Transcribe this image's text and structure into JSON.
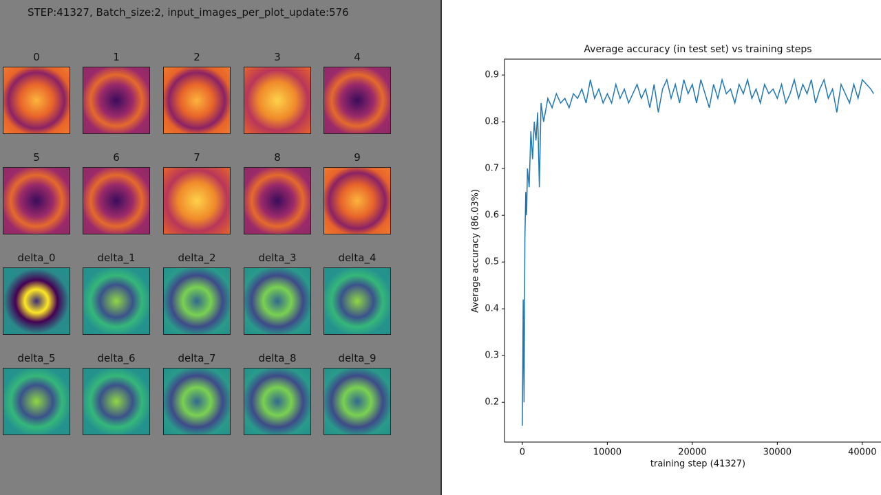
{
  "left_panel": {
    "header": "STEP:41327, Batch_size:2, input_images_per_plot_update:576",
    "tiles": [
      {
        "label": "0"
      },
      {
        "label": "1"
      },
      {
        "label": "2"
      },
      {
        "label": "3"
      },
      {
        "label": "4"
      },
      {
        "label": "5"
      },
      {
        "label": "6"
      },
      {
        "label": "7"
      },
      {
        "label": "8"
      },
      {
        "label": "9"
      },
      {
        "label": "delta_0"
      },
      {
        "label": "delta_1"
      },
      {
        "label": "delta_2"
      },
      {
        "label": "delta_3"
      },
      {
        "label": "delta_4"
      },
      {
        "label": "delta_5"
      },
      {
        "label": "delta_6"
      },
      {
        "label": "delta_7"
      },
      {
        "label": "delta_8"
      },
      {
        "label": "delta_9"
      }
    ]
  },
  "chart_data": {
    "type": "line",
    "title": "Average accuracy (in test set) vs training steps",
    "x_label": "training step (41327)",
    "y_label": "Average accuracy (86.03%)",
    "color": "#1f77b4",
    "x": [
      0,
      100,
      200,
      300,
      400,
      500,
      600,
      800,
      1000,
      1200,
      1400,
      1600,
      1800,
      2000,
      2200,
      2500,
      3000,
      3500,
      4000,
      4500,
      5000,
      5500,
      6000,
      6500,
      7000,
      7500,
      8000,
      8500,
      9000,
      9500,
      10000,
      10500,
      11000,
      11500,
      12000,
      12500,
      13000,
      13500,
      14000,
      14500,
      15000,
      15500,
      16000,
      16500,
      17000,
      17500,
      18000,
      18500,
      19000,
      19500,
      20000,
      20500,
      21000,
      21500,
      22000,
      22500,
      23000,
      23500,
      24000,
      24500,
      25000,
      25500,
      26000,
      26500,
      27000,
      27500,
      28000,
      28500,
      29000,
      29500,
      30000,
      30500,
      31000,
      31500,
      32000,
      32500,
      33000,
      33500,
      34000,
      34500,
      35000,
      35500,
      36000,
      36500,
      37000,
      37500,
      38000,
      38500,
      39000,
      39500,
      40000,
      40500,
      41000,
      41327
    ],
    "values": [
      0.15,
      0.42,
      0.2,
      0.55,
      0.65,
      0.6,
      0.7,
      0.66,
      0.78,
      0.72,
      0.8,
      0.76,
      0.82,
      0.66,
      0.84,
      0.8,
      0.85,
      0.83,
      0.86,
      0.84,
      0.85,
      0.83,
      0.86,
      0.85,
      0.87,
      0.84,
      0.89,
      0.85,
      0.87,
      0.84,
      0.86,
      0.84,
      0.88,
      0.85,
      0.87,
      0.84,
      0.86,
      0.88,
      0.85,
      0.87,
      0.83,
      0.88,
      0.82,
      0.87,
      0.89,
      0.85,
      0.88,
      0.84,
      0.89,
      0.86,
      0.88,
      0.84,
      0.89,
      0.86,
      0.83,
      0.88,
      0.85,
      0.89,
      0.86,
      0.87,
      0.84,
      0.88,
      0.86,
      0.89,
      0.85,
      0.87,
      0.84,
      0.88,
      0.86,
      0.87,
      0.85,
      0.88,
      0.84,
      0.86,
      0.89,
      0.85,
      0.88,
      0.86,
      0.89,
      0.84,
      0.87,
      0.89,
      0.85,
      0.87,
      0.82,
      0.88,
      0.86,
      0.84,
      0.88,
      0.85,
      0.89,
      0.88,
      0.87,
      0.86
    ],
    "xlim": [
      -2100,
      42200
    ],
    "ylim": [
      0.115,
      0.934
    ],
    "xticks": [
      0,
      10000,
      20000,
      30000,
      40000
    ],
    "yticks": [
      0.2,
      0.3,
      0.4,
      0.5,
      0.6,
      0.7,
      0.8,
      0.9
    ]
  }
}
